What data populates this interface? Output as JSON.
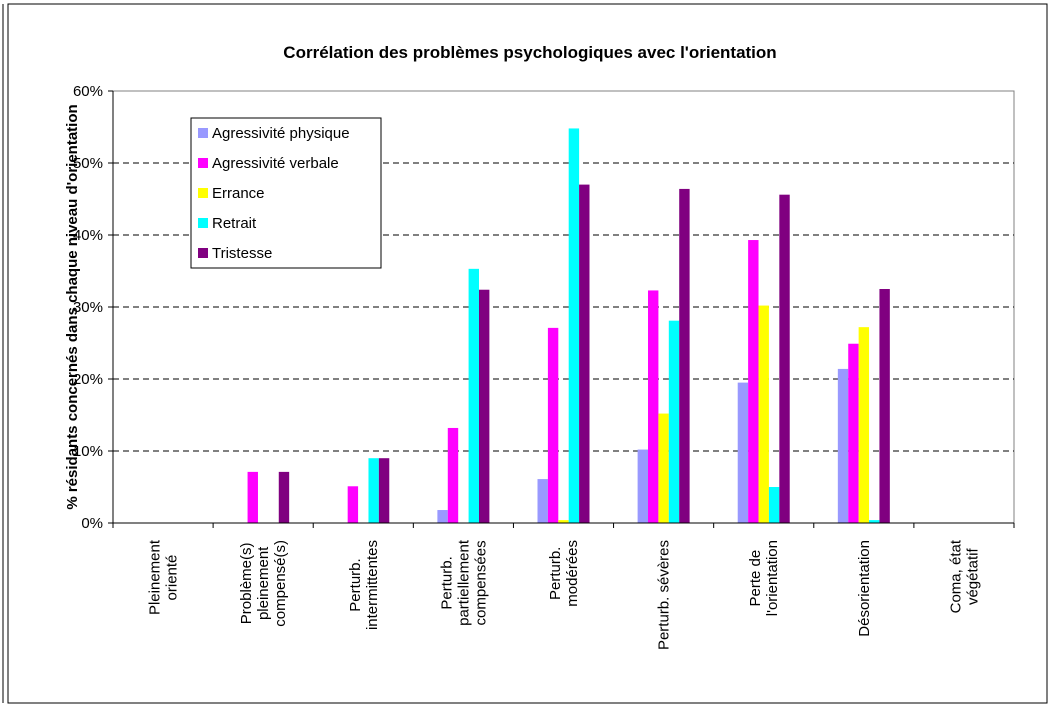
{
  "chart_data": {
    "type": "bar",
    "title": "Corrélation des problèmes psychologiques avec l'orientation",
    "y_label": "% résidants concernés dans chaque niveau d'orientation",
    "categories": [
      [
        "Pleinement",
        "orienté"
      ],
      [
        "Problème(s)",
        "pleinement",
        "compensé(s)"
      ],
      [
        "Perturb.",
        "intermittentes"
      ],
      [
        "Perturb.",
        "partiellement",
        "compensées"
      ],
      [
        "Perturb.",
        "modérées"
      ],
      [
        "Perturb. sévères"
      ],
      [
        "Perte de",
        "l'orientation"
      ],
      [
        "Désorientation"
      ],
      [
        "Coma, état",
        "végétatif"
      ]
    ],
    "series": [
      {
        "name": "Agressivité physique",
        "color": "#9999ff",
        "values": [
          0,
          0,
          0,
          1.8,
          6.1,
          10.2,
          19.5,
          21.4,
          0
        ]
      },
      {
        "name": "Agressivité verbale",
        "color": "#ff00ff",
        "values": [
          0,
          7.1,
          5.1,
          13.2,
          27.1,
          32.3,
          39.3,
          24.9,
          0
        ]
      },
      {
        "name": "Errance",
        "color": "#ffff00",
        "values": [
          0,
          0,
          0,
          0,
          0.4,
          15.2,
          30.2,
          27.2,
          0
        ]
      },
      {
        "name": "Retrait",
        "color": "#00ffff",
        "values": [
          0,
          0,
          9.0,
          35.3,
          54.8,
          28.1,
          5.0,
          0.4,
          0
        ]
      },
      {
        "name": "Tristesse",
        "color": "#800080",
        "values": [
          0,
          7.1,
          9.0,
          32.4,
          47.0,
          46.4,
          45.6,
          32.5,
          0
        ]
      }
    ],
    "ylim": [
      0,
      60
    ],
    "yticks": [
      {
        "value": 0,
        "label": "0%"
      },
      {
        "value": 10,
        "label": "10%"
      },
      {
        "value": 20,
        "label": "20%"
      },
      {
        "value": 30,
        "label": "30%"
      },
      {
        "value": 40,
        "label": "40%"
      },
      {
        "value": 50,
        "label": "50%"
      },
      {
        "value": 60,
        "label": "60%"
      }
    ],
    "grid": true,
    "legend": "top-left"
  }
}
